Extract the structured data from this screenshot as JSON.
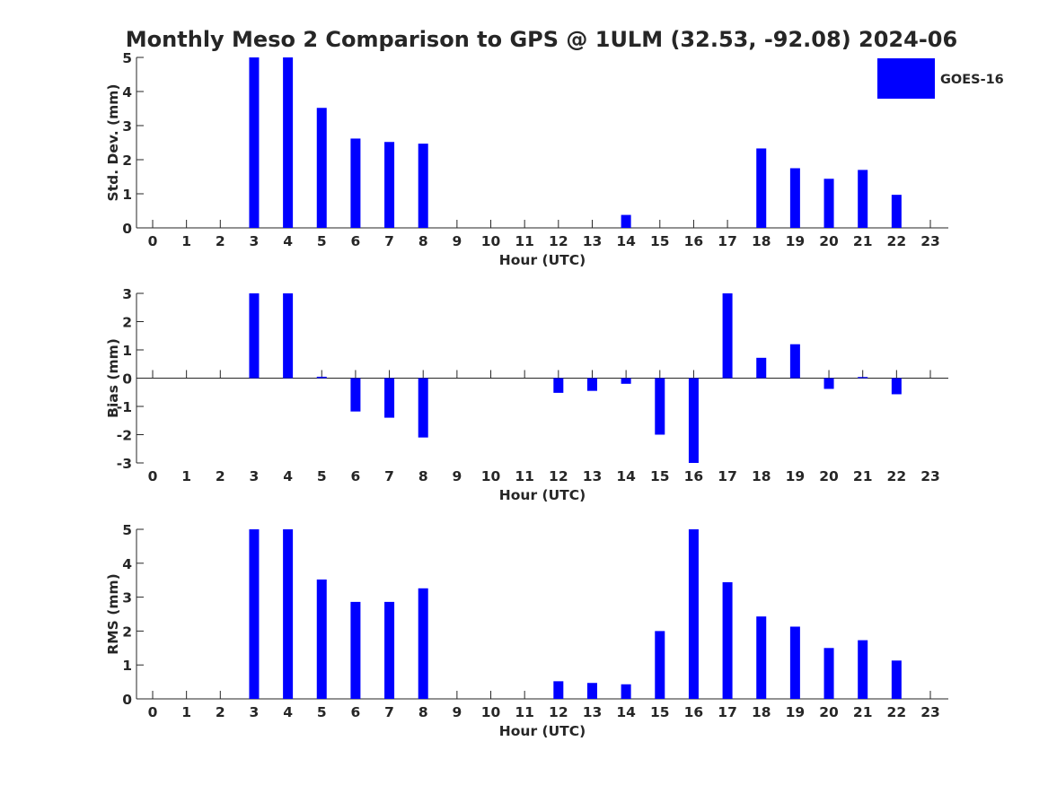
{
  "title": "Monthly Meso 2 Comparison to GPS @ 1ULM (32.53, -92.08) 2024-06",
  "legend": {
    "label": "GOES-16",
    "color": "#0000ff",
    "placement": "top-right"
  },
  "bar_color": "#0000ff",
  "chart_data": [
    {
      "type": "bar",
      "xlabel": "Hour (UTC)",
      "ylabel": "Std. Dev. (mm)",
      "ylim": [
        0,
        5
      ],
      "yticks": [
        0,
        1,
        2,
        3,
        4,
        5
      ],
      "categories": [
        0,
        1,
        2,
        3,
        4,
        5,
        6,
        7,
        8,
        9,
        10,
        11,
        12,
        13,
        14,
        15,
        16,
        17,
        18,
        19,
        20,
        21,
        22,
        23
      ],
      "series": [
        {
          "name": "GOES-16",
          "values": [
            null,
            null,
            null,
            5.0,
            5.0,
            3.52,
            2.62,
            2.52,
            2.47,
            null,
            null,
            null,
            null,
            null,
            0.38,
            null,
            null,
            null,
            2.33,
            1.75,
            1.44,
            1.7,
            0.97,
            null
          ]
        }
      ]
    },
    {
      "type": "bar",
      "xlabel": "Hour (UTC)",
      "ylabel": "Bias (mm)",
      "ylim": [
        -3,
        3
      ],
      "yticks": [
        -3,
        -2,
        -1,
        0,
        1,
        2,
        3
      ],
      "categories": [
        0,
        1,
        2,
        3,
        4,
        5,
        6,
        7,
        8,
        9,
        10,
        11,
        12,
        13,
        14,
        15,
        16,
        17,
        18,
        19,
        20,
        21,
        22,
        23
      ],
      "series": [
        {
          "name": "GOES-16",
          "values": [
            null,
            null,
            null,
            3.0,
            3.0,
            0.05,
            -1.18,
            -1.4,
            -2.1,
            null,
            null,
            null,
            -0.52,
            -0.45,
            -0.2,
            -2.0,
            -3.0,
            3.0,
            0.72,
            1.2,
            -0.38,
            0.04,
            -0.57,
            null
          ]
        }
      ]
    },
    {
      "type": "bar",
      "xlabel": "Hour (UTC)",
      "ylabel": "RMS (mm)",
      "ylim": [
        0,
        5
      ],
      "yticks": [
        0,
        1,
        2,
        3,
        4,
        5
      ],
      "categories": [
        0,
        1,
        2,
        3,
        4,
        5,
        6,
        7,
        8,
        9,
        10,
        11,
        12,
        13,
        14,
        15,
        16,
        17,
        18,
        19,
        20,
        21,
        22,
        23
      ],
      "series": [
        {
          "name": "GOES-16",
          "values": [
            null,
            null,
            null,
            5.0,
            5.0,
            3.52,
            2.86,
            2.86,
            3.26,
            null,
            null,
            null,
            0.52,
            0.47,
            0.43,
            2.0,
            5.0,
            3.44,
            2.43,
            2.13,
            1.5,
            1.73,
            1.13,
            null
          ]
        }
      ]
    }
  ]
}
